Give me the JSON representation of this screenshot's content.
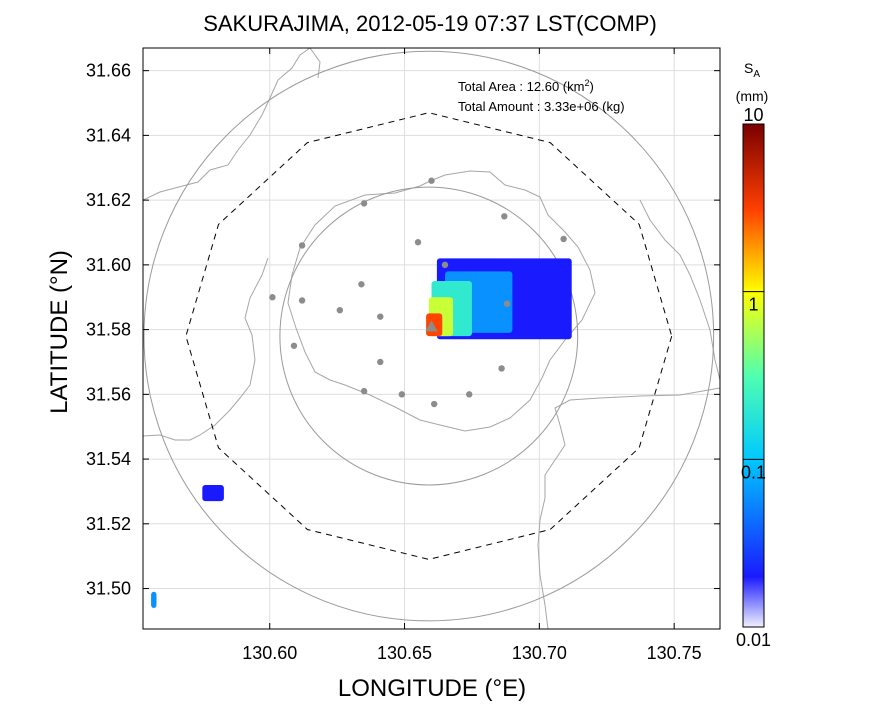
{
  "chart_data": {
    "type": "heatmap",
    "title": "SAKURAJIMA, 2012-05-19 07:37 LST(COMP)",
    "xlabel": "LONGITUDE (°E)",
    "ylabel": "LATITUDE (°N)",
    "xlim": [
      130.553,
      130.767
    ],
    "ylim": [
      31.4875,
      31.667
    ],
    "x_ticks": [
      130.6,
      130.65,
      130.7,
      130.75
    ],
    "x_tick_labels": [
      "130.60",
      "130.65",
      "130.70",
      "130.75"
    ],
    "y_ticks": [
      31.5,
      31.52,
      31.54,
      31.56,
      31.58,
      31.6,
      31.62,
      31.64,
      31.66
    ],
    "y_tick_labels": [
      "31.50",
      "31.52",
      "31.54",
      "31.56",
      "31.58",
      "31.60",
      "31.62",
      "31.64",
      "31.66"
    ],
    "grid": true,
    "annotations": {
      "area_label": "Total Area   : 12.60 (km",
      "area_sup": "2",
      "area_close": ")",
      "amount_label": "Total Amount : 3.33e+06 (kg)"
    },
    "colorbar": {
      "label_main": "S",
      "label_sub": "A",
      "unit": "(mm)",
      "scale": "log",
      "range": [
        0.01,
        10
      ],
      "tick_labels": [
        "10",
        "1",
        "0.1",
        "0.01"
      ],
      "ticks": [
        10,
        1,
        0.1,
        0.01
      ]
    },
    "range_rings": {
      "center": [
        130.659,
        31.578
      ],
      "radii_deg_lat": [
        0.046,
        0.088
      ],
      "dashed_radius_deg_lat": 0.067
    },
    "stations": [
      [
        130.66,
        31.626
      ],
      [
        130.635,
        31.619
      ],
      [
        130.687,
        31.615
      ],
      [
        130.612,
        31.606
      ],
      [
        130.655,
        31.607
      ],
      [
        130.709,
        31.608
      ],
      [
        130.665,
        31.6
      ],
      [
        130.601,
        31.59
      ],
      [
        130.612,
        31.589
      ],
      [
        130.634,
        31.594
      ],
      [
        130.626,
        31.586
      ],
      [
        130.641,
        31.584
      ],
      [
        130.688,
        31.588
      ],
      [
        130.609,
        31.575
      ],
      [
        130.641,
        31.57
      ],
      [
        130.686,
        31.568
      ],
      [
        130.635,
        31.561
      ],
      [
        130.649,
        31.56
      ],
      [
        130.674,
        31.56
      ],
      [
        130.661,
        31.557
      ]
    ],
    "vent": [
      130.66,
      31.581
    ],
    "deposit_blobs": [
      {
        "x": [
          130.662,
          130.712
        ],
        "y": [
          31.577,
          31.602
        ],
        "value": 0.02
      },
      {
        "x": [
          130.665,
          130.69
        ],
        "y": [
          31.579,
          31.598
        ],
        "value": 0.06
      },
      {
        "x": [
          130.66,
          130.675
        ],
        "y": [
          31.578,
          31.595
        ],
        "value": 0.2
      },
      {
        "x": [
          130.659,
          130.668
        ],
        "y": [
          31.578,
          31.59
        ],
        "value": 0.7
      },
      {
        "x": [
          130.658,
          130.664
        ],
        "y": [
          31.578,
          31.585
        ],
        "value": 3.0
      },
      {
        "x": [
          130.575,
          130.583
        ],
        "y": [
          31.527,
          31.532
        ],
        "value": 0.02
      },
      {
        "x": [
          130.556,
          130.558
        ],
        "y": [
          31.494,
          31.499
        ],
        "value": 0.06
      }
    ]
  }
}
